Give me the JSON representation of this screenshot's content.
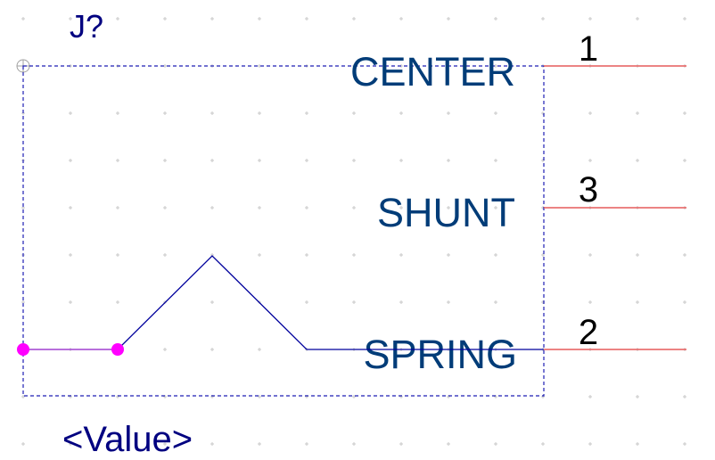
{
  "component": {
    "reference": "J?",
    "value": "<Value>"
  },
  "pins": [
    {
      "name": "CENTER",
      "number": "1"
    },
    {
      "name": "SHUNT",
      "number": "3"
    },
    {
      "name": "SPRING",
      "number": "2"
    }
  ],
  "colors": {
    "background": "#ffffff",
    "grid_dot": "#c8c8c8",
    "body_outline": "#1e1eb4",
    "pin_line": "#e65a5a",
    "pin_name_text": "#003c78",
    "ref_value_text": "#000080",
    "pin_number_text": "#000000",
    "symbol_line": "#00009c",
    "connection_dot": "#ff00ff",
    "wire_stub": "#a040d0"
  }
}
